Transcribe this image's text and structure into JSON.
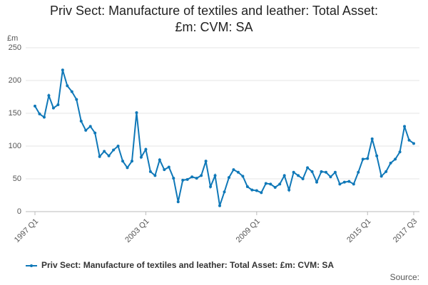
{
  "chart_data": {
    "type": "line",
    "title": "Priv Sect: Manufacture of textiles and leather: Total Asset: £m: CVM: SA",
    "y_label": "£m",
    "source": "Source:",
    "categories": [
      "1997 Q1",
      null,
      null,
      null,
      null,
      null,
      null,
      null,
      null,
      null,
      null,
      null,
      null,
      null,
      null,
      null,
      null,
      null,
      null,
      null,
      null,
      null,
      null,
      null,
      "2003 Q1",
      null,
      null,
      null,
      null,
      null,
      null,
      null,
      null,
      null,
      null,
      null,
      null,
      null,
      null,
      null,
      null,
      null,
      null,
      null,
      null,
      null,
      null,
      null,
      "2009 Q1",
      null,
      null,
      null,
      null,
      null,
      null,
      null,
      null,
      null,
      null,
      null,
      null,
      null,
      null,
      null,
      null,
      null,
      null,
      null,
      null,
      null,
      null,
      null,
      "2015 Q1",
      null,
      null,
      null,
      null,
      null,
      null,
      null,
      null,
      null,
      "2017 Q3"
    ],
    "series": [
      {
        "name": "Priv Sect: Manufacture of textiles and leather: Total Asset: £m: CVM: SA",
        "color": "#0f78b8",
        "values": [
          161,
          149,
          144,
          177,
          158,
          163,
          216,
          192,
          183,
          171,
          138,
          124,
          130,
          120,
          84,
          92,
          85,
          94,
          100,
          77,
          67,
          77,
          151,
          83,
          95,
          61,
          55,
          79,
          64,
          68,
          51,
          15,
          48,
          49,
          53,
          51,
          55,
          77,
          38,
          55,
          9,
          30,
          52,
          64,
          60,
          54,
          38,
          33,
          32,
          29,
          43,
          42,
          37,
          42,
          55,
          33,
          60,
          55,
          50,
          67,
          61,
          45,
          61,
          60,
          53,
          60,
          42,
          45,
          46,
          42,
          60,
          80,
          81,
          111,
          85,
          54,
          61,
          74,
          80,
          91,
          130,
          109,
          104
        ]
      }
    ],
    "ylim": [
      0,
      250
    ],
    "yticks": [
      0,
      50,
      100,
      150,
      200,
      250
    ],
    "grid": true,
    "legend": "bottom"
  }
}
